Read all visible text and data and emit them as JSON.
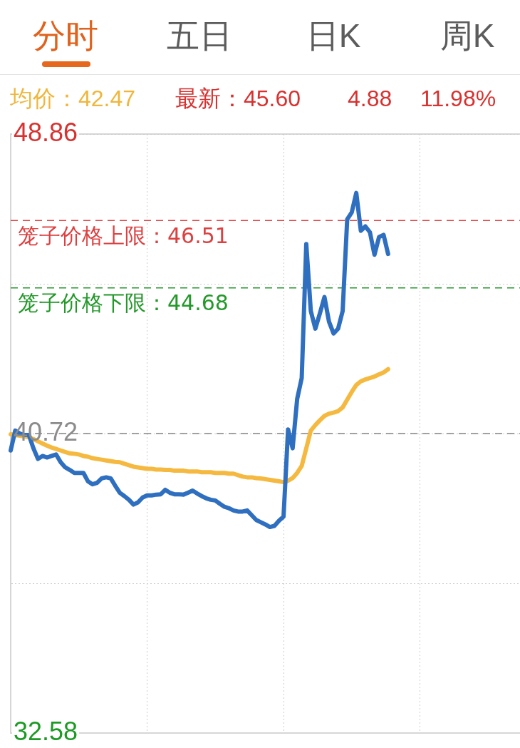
{
  "chart_data": {
    "type": "line",
    "annotations": [
      "分时",
      "五日",
      "日K",
      "周K",
      "均价：42.47",
      "最新：45.60",
      "4.88",
      "11.98%"
    ],
    "categories": [
      null,
      null,
      null,
      null,
      null,
      null,
      null,
      null,
      null,
      null,
      null,
      null,
      null,
      null,
      null,
      null,
      null,
      null,
      null,
      null,
      null,
      null,
      null,
      null,
      null,
      null,
      null,
      null,
      null,
      null,
      null,
      null,
      null,
      null,
      null,
      null,
      null,
      null,
      null,
      null,
      null,
      null,
      null,
      null,
      null,
      null,
      null,
      null,
      null,
      null,
      null,
      null,
      null,
      null,
      null,
      null,
      null,
      null,
      null,
      null,
      null,
      null,
      null,
      null,
      null,
      null,
      null,
      null,
      null,
      null,
      null,
      null,
      null,
      null,
      null,
      null,
      null,
      null,
      null,
      null,
      null,
      null,
      null,
      null,
      null,
      null,
      null,
      null,
      null,
      null,
      null,
      null,
      null,
      null,
      null,
      null,
      null,
      null,
      null,
      null,
      null,
      null,
      null,
      null,
      null,
      null,
      null,
      null,
      null,
      null,
      null,
      null,
      null
    ],
    "series": [
      {
        "color": "#2f6fc0",
        "values": [
          40.26,
          40.8,
          40.72,
          40.68,
          40.68,
          40.32,
          40.03,
          40.11,
          40.07,
          40.11,
          40.15,
          39.94,
          39.8,
          39.73,
          39.65,
          39.65,
          39.65,
          39.42,
          39.34,
          39.38,
          39.5,
          39.53,
          39.5,
          39.3,
          39.11,
          39.02,
          38.92,
          38.79,
          38.85,
          38.98,
          39.04,
          39.04,
          39.06,
          39.07,
          39.19,
          39.11,
          39.07,
          39.07,
          39.06,
          39.11,
          39.17,
          39.09,
          39.02,
          38.96,
          38.92,
          38.9,
          38.81,
          38.73,
          38.69,
          38.63,
          38.6,
          38.6,
          38.63,
          38.5,
          38.37,
          38.31,
          38.25,
          38.18,
          38.21,
          38.35,
          38.46,
          40.83,
          40.32,
          41.66,
          42.23,
          45.87,
          44.05,
          43.57,
          43.99,
          44.43,
          43.76,
          43.44,
          43.57,
          44.05,
          46.54,
          46.73,
          47.26,
          46.23,
          46.35,
          46.19,
          45.58,
          46.06,
          46.12,
          45.6,
          null,
          null,
          null,
          null,
          null,
          null,
          null,
          null,
          null,
          null,
          null,
          null,
          null,
          null,
          null,
          null,
          null,
          null,
          null,
          null,
          null,
          null,
          null,
          null,
          null,
          null,
          null,
          null,
          null
        ]
      },
      {
        "color": "#f5b940",
        "values": [
          40.7,
          40.68,
          40.66,
          40.64,
          40.62,
          40.57,
          40.51,
          40.45,
          40.39,
          40.34,
          40.3,
          40.26,
          40.22,
          40.18,
          40.17,
          40.15,
          40.11,
          40.09,
          40.05,
          40.03,
          40.01,
          39.99,
          39.97,
          39.95,
          39.94,
          39.9,
          39.86,
          39.82,
          39.8,
          39.78,
          39.76,
          39.76,
          39.74,
          39.74,
          39.73,
          39.73,
          39.71,
          39.71,
          39.71,
          39.69,
          39.69,
          39.69,
          39.67,
          39.67,
          39.67,
          39.65,
          39.65,
          39.65,
          39.63,
          39.63,
          39.59,
          39.55,
          39.53,
          39.53,
          39.51,
          39.5,
          39.48,
          39.46,
          39.44,
          39.42,
          39.4,
          39.44,
          39.51,
          39.65,
          39.84,
          40.32,
          40.8,
          40.95,
          41.08,
          41.2,
          41.26,
          41.29,
          41.33,
          41.43,
          41.64,
          41.85,
          42.04,
          42.14,
          42.19,
          42.23,
          42.27,
          42.33,
          42.38,
          42.47,
          null,
          null,
          null,
          null,
          null,
          null,
          null,
          null,
          null,
          null,
          null,
          null,
          null,
          null,
          null,
          null,
          null,
          null,
          null,
          null,
          null,
          null,
          null,
          null,
          null,
          null,
          null,
          null,
          null
        ]
      }
    ],
    "ylim": [
      32.58,
      48.86
    ],
    "yticks": [
      32.58,
      {
        "value": 36.65,
        "label": null
      },
      40.72,
      {
        "value": 44.79,
        "label": null
      },
      48.86
    ],
    "ref_lines": [
      {
        "axis": "y",
        "value": 46.51,
        "label": "笼子价格上限：46.51",
        "color": "#dd4040",
        "line_style": "dashed"
      },
      {
        "axis": "y",
        "value": 44.68,
        "label": "笼子价格下限：44.68",
        "color": "#24992a",
        "line_style": "dashed"
      },
      {
        "axis": "y",
        "value": 40.72,
        "color": "#858585",
        "line_style": "dashed"
      }
    ],
    "grid": true,
    "tick_labels": "y"
  }
}
